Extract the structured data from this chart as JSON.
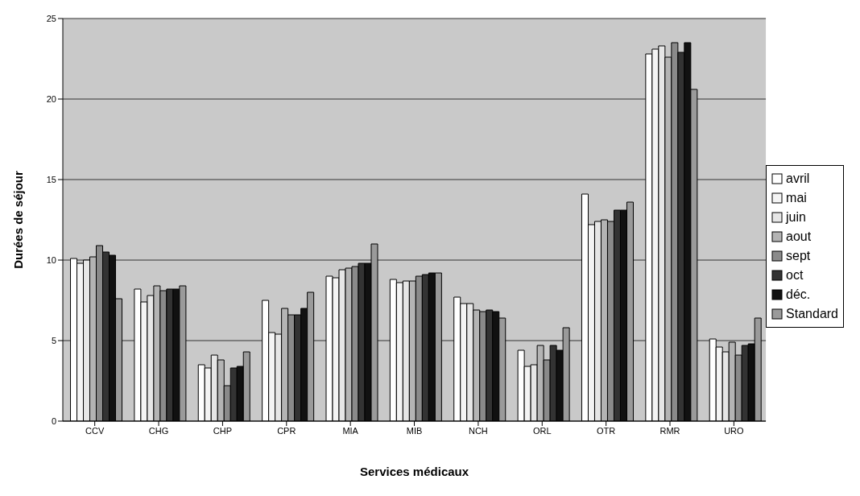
{
  "chart_data": {
    "type": "bar",
    "xlabel": "Services médicaux",
    "ylabel": "Durées de séjour",
    "categories": [
      "CCV",
      "CHG",
      "CHP",
      "CPR",
      "MIA",
      "MIB",
      "NCH",
      "ORL",
      "OTR",
      "RMR",
      "URO"
    ],
    "series": [
      {
        "name": "avril",
        "color": "#ffffff",
        "values": [
          10.1,
          8.2,
          3.5,
          7.5,
          9.0,
          8.8,
          7.7,
          4.4,
          14.1,
          22.8,
          5.1
        ]
      },
      {
        "name": "mai",
        "color": "#f4f4f4",
        "values": [
          9.8,
          7.4,
          3.3,
          5.5,
          8.9,
          8.6,
          7.3,
          3.4,
          12.2,
          23.1,
          4.6
        ]
      },
      {
        "name": "juin",
        "color": "#e6e6e6",
        "values": [
          10.0,
          7.8,
          4.1,
          5.4,
          9.4,
          8.7,
          7.3,
          3.5,
          12.4,
          23.3,
          4.3
        ]
      },
      {
        "name": "aout",
        "color": "#b4b4b4",
        "values": [
          10.2,
          8.4,
          3.8,
          7.0,
          9.5,
          8.7,
          6.9,
          4.7,
          12.5,
          22.6,
          4.9
        ]
      },
      {
        "name": "sept",
        "color": "#8a8a8a",
        "values": [
          10.9,
          8.1,
          2.2,
          6.6,
          9.6,
          9.0,
          6.8,
          3.8,
          12.4,
          23.5,
          4.1
        ]
      },
      {
        "name": "oct",
        "color": "#333333",
        "values": [
          10.5,
          8.2,
          3.3,
          6.6,
          9.8,
          9.1,
          6.9,
          4.7,
          13.1,
          22.9,
          4.7
        ]
      },
      {
        "name": "déc.",
        "color": "#111111",
        "values": [
          10.3,
          8.2,
          3.4,
          7.0,
          9.8,
          9.2,
          6.8,
          4.4,
          13.1,
          23.5,
          4.8
        ]
      },
      {
        "name": "Standard",
        "color": "#9a9a9a",
        "values": [
          7.6,
          8.4,
          4.3,
          8.0,
          11.0,
          9.2,
          6.4,
          5.8,
          13.6,
          20.6,
          6.4
        ]
      }
    ],
    "ylim": [
      0,
      25
    ],
    "yticks": [
      0,
      5,
      10,
      15,
      20,
      25
    ],
    "grid": "y",
    "legend": "right"
  }
}
